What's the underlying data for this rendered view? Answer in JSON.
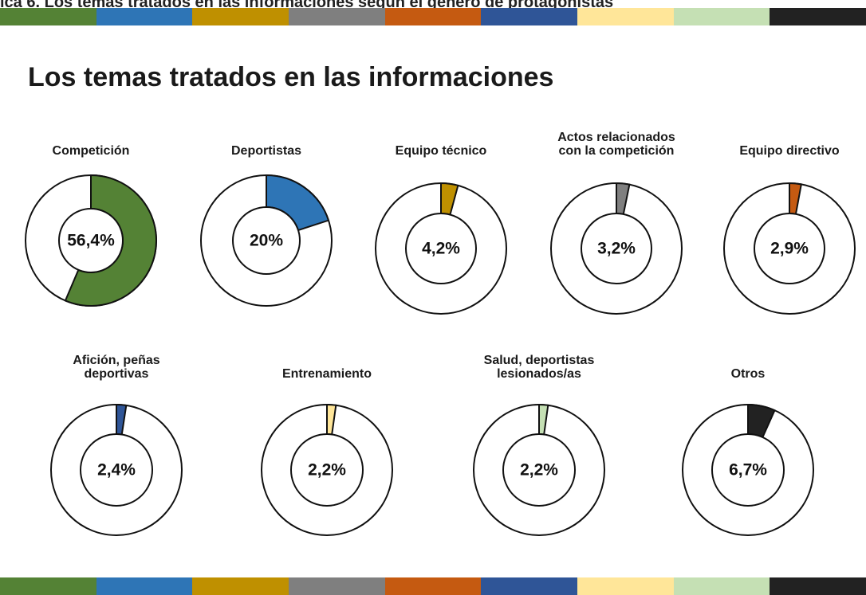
{
  "caption": "ica 6. Los temas tratados en las informaciones según el género de protagonistas",
  "title": "Los temas tratados en las informaciones",
  "chart_data": [
    {
      "type": "donut",
      "title": "Competición",
      "values": [
        56.4
      ],
      "value_labels": [
        "56,4%"
      ],
      "color": "#548235"
    },
    {
      "type": "donut",
      "title": "Deportistas",
      "values": [
        20
      ],
      "value_labels": [
        "20%"
      ],
      "color": "#2e75b6"
    },
    {
      "type": "donut",
      "title": "Equipo técnico",
      "values": [
        4.2
      ],
      "value_labels": [
        "4,2%"
      ],
      "color": "#bf9000"
    },
    {
      "type": "donut",
      "title": "Actos relacionados\ncon la competición",
      "values": [
        3.2
      ],
      "value_labels": [
        "3,2%"
      ],
      "color": "#7f7f7f"
    },
    {
      "type": "donut",
      "title": "Equipo directivo",
      "values": [
        2.9
      ],
      "value_labels": [
        "2,9%"
      ],
      "color": "#c55a11"
    },
    {
      "type": "donut",
      "title": "Afición, peñas\ndeportivas",
      "values": [
        2.4
      ],
      "value_labels": [
        "2,4%"
      ],
      "color": "#2f5597"
    },
    {
      "type": "donut",
      "title": "Entrenamiento",
      "values": [
        2.2
      ],
      "value_labels": [
        "2,2%"
      ],
      "color": "#ffe699"
    },
    {
      "type": "donut",
      "title": "Salud, deportistas\nlesionados/as",
      "values": [
        2.2
      ],
      "value_labels": [
        "2,2%"
      ],
      "color": "#c5e0b4"
    },
    {
      "type": "donut",
      "title": "Otros",
      "values": [
        6.7
      ],
      "value_labels": [
        "6,7%"
      ],
      "color": "#222222"
    }
  ]
}
